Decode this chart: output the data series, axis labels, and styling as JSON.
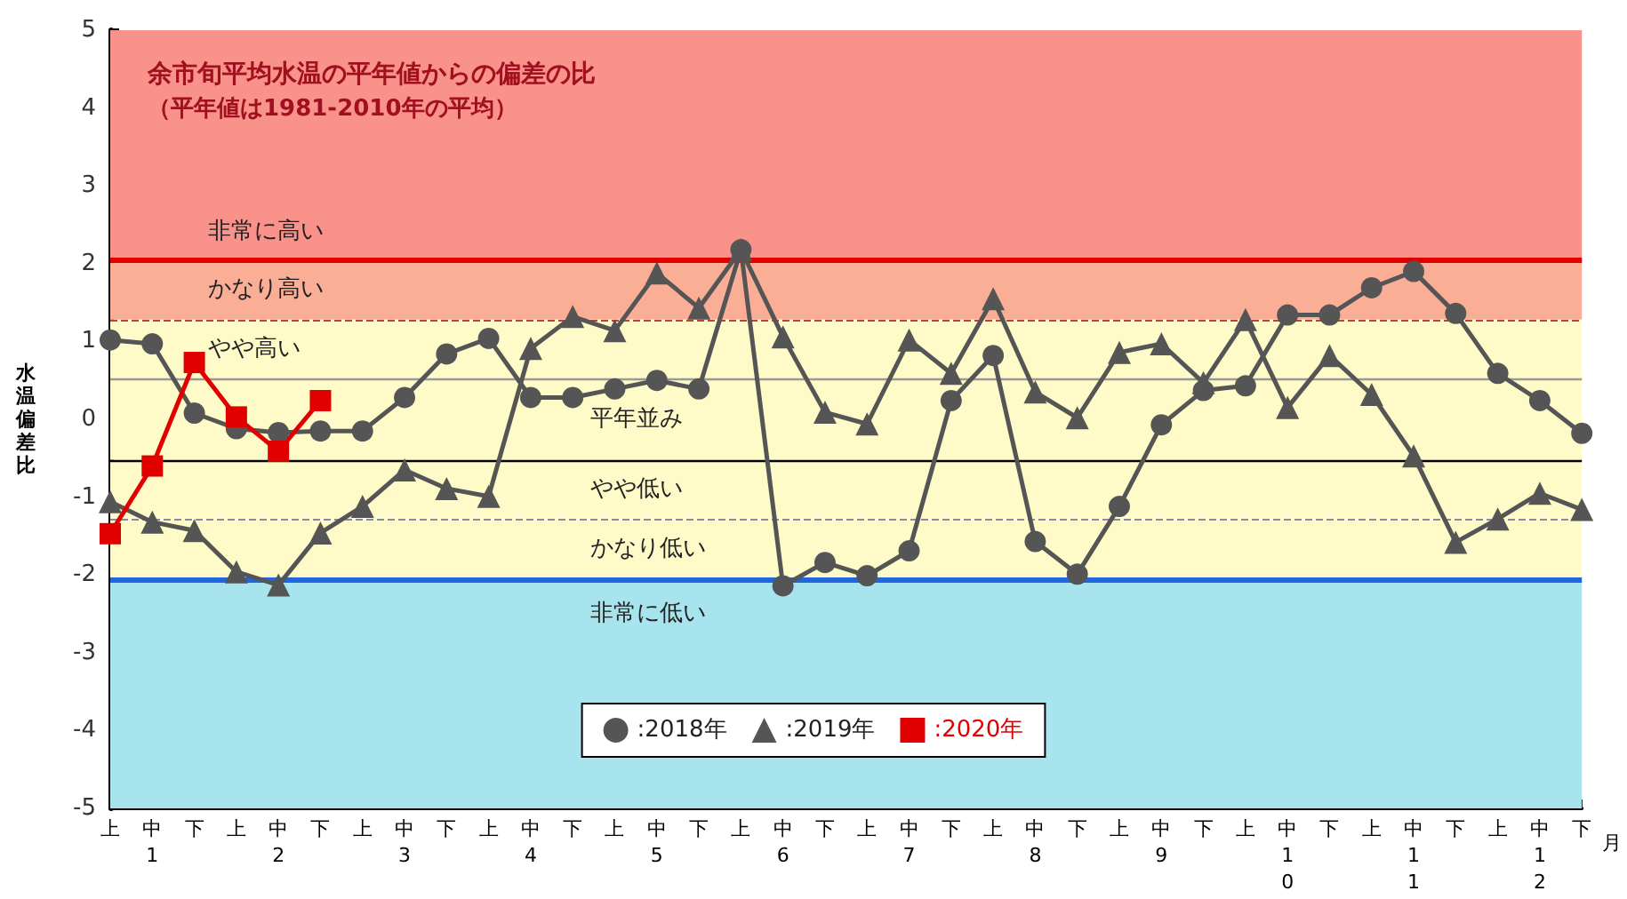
{
  "chart_data": {
    "type": "line",
    "title": "余市旬平均水温の平年値からの偏差の比",
    "subtitle": "（平年値は1981-2010年の平均）",
    "ylabel": "水温偏差比",
    "xlabel": "月",
    "categories": [
      "上",
      "中\n1",
      "下",
      "上",
      "中\n2",
      "下",
      "上",
      "中\n3",
      "下",
      "上",
      "中\n4",
      "下",
      "上",
      "中\n5",
      "下",
      "上",
      "中\n6",
      "下",
      "上",
      "中\n7",
      "下",
      "上",
      "中\n8",
      "下",
      "上",
      "中\n9",
      "下",
      "上",
      "中\n1\n0",
      "下",
      "上",
      "中\n1\n1",
      "下",
      "上",
      "中\n1\n2",
      "下"
    ],
    "series": [
      {
        "name": ":2018年",
        "color": "#555555",
        "marker": "circle",
        "values": [
          1.02,
          0.97,
          0.08,
          -0.12,
          -0.17,
          -0.15,
          -0.15,
          0.28,
          0.84,
          1.04,
          0.28,
          0.28,
          0.39,
          0.5,
          0.39,
          2.18,
          -2.14,
          -1.84,
          -2.01,
          -1.69,
          0.24,
          0.82,
          -1.57,
          -1.99,
          -1.12,
          -0.07,
          0.37,
          0.43,
          1.34,
          1.34,
          1.69,
          1.9,
          1.36,
          0.59,
          0.24,
          -0.18
        ]
      },
      {
        "name": ":2019年",
        "color": "#555555",
        "marker": "triangle",
        "values": [
          -1.06,
          -1.32,
          -1.43,
          -1.96,
          -2.13,
          -1.46,
          -1.12,
          -0.65,
          -0.89,
          -0.99,
          0.91,
          1.32,
          1.14,
          1.88,
          1.43,
          2.18,
          1.06,
          0.09,
          -0.06,
          1.02,
          0.59,
          1.55,
          0.35,
          0.02,
          0.86,
          0.97,
          0.47,
          1.28,
          0.15,
          0.82,
          0.32,
          -0.47,
          -1.58,
          -1.28,
          -0.95,
          -1.16
        ]
      },
      {
        "name": ":2020年",
        "color": "#e00000",
        "marker": "square",
        "values": [
          -1.47,
          -0.6,
          0.73,
          0.03,
          -0.41,
          0.24,
          null,
          null,
          null,
          null,
          null,
          null,
          null,
          null,
          null,
          null,
          null,
          null,
          null,
          null,
          null,
          null,
          null,
          null,
          null,
          null,
          null,
          null,
          null,
          null,
          null,
          null,
          null,
          null,
          null,
          null
        ]
      }
    ],
    "ylim": [
      -5,
      5
    ],
    "yticks": [
      -5,
      -4,
      -3,
      -2,
      -1,
      0,
      1,
      2,
      3,
      4,
      5
    ],
    "legend": "bottom",
    "line_style": "solid",
    "bands": [
      {
        "axis": "y",
        "from": 2.05,
        "to": 5,
        "label": "非常に高い",
        "color": "#fa928c"
      },
      {
        "axis": "y",
        "from": 1.28,
        "to": 2.05,
        "label": "かなり高い",
        "color": "#fbae96"
      },
      {
        "axis": "y",
        "from": 0.52,
        "to": 1.28,
        "label": "やや高い",
        "color": "#fffbc8"
      },
      {
        "axis": "y",
        "from": -0.52,
        "to": 0.52,
        "label": "平年並み",
        "color": "#fffbc8"
      },
      {
        "axis": "y",
        "from": -1.28,
        "to": -0.52,
        "label": "やや低い",
        "color": "#fffbc8"
      },
      {
        "axis": "y",
        "from": -2.05,
        "to": -1.28,
        "label": "かなり低い",
        "color": "#fffbc8"
      },
      {
        "axis": "y",
        "from": -5,
        "to": -2.05,
        "label": "非常に低い",
        "color": "#a8e4ee"
      }
    ],
    "ref_lines": [
      {
        "axis": "y",
        "value": 2.05,
        "color": "#e00000",
        "line_style": "solid"
      },
      {
        "axis": "y",
        "value": 1.28,
        "color": "#c04040",
        "line_style": "dashed"
      },
      {
        "axis": "y",
        "value": 0.52,
        "color": "#999999",
        "line_style": "solid"
      },
      {
        "axis": "y",
        "value": -0.52,
        "color": "#000000",
        "line_style": "solid"
      },
      {
        "axis": "y",
        "value": -1.28,
        "color": "#8888aa",
        "line_style": "dashed"
      },
      {
        "axis": "y",
        "value": -2.05,
        "color": "#2266dd",
        "line_style": "solid"
      }
    ]
  }
}
